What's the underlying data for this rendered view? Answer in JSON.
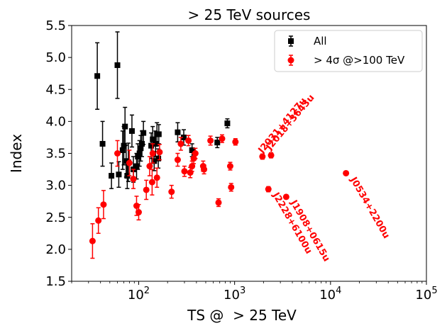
{
  "chart_data": {
    "type": "scatter",
    "title": "> 25 TeV sources",
    "xlabel": "TS @  > 25 TeV",
    "ylabel": "Index",
    "xscale": "log",
    "xlim": [
      20,
      100000
    ],
    "ylim": [
      1.5,
      5.5
    ],
    "yticks": [
      "1.5",
      "2.0",
      "2.5",
      "3.0",
      "3.5",
      "4.0",
      "4.5",
      "5.0",
      "5.5"
    ],
    "ytick_values": [
      1.5,
      2.0,
      2.5,
      3.0,
      3.5,
      4.0,
      4.5,
      5.0,
      5.5
    ],
    "xtick_values": [
      100,
      1000,
      10000,
      100000
    ],
    "xtick_mantissa": "10",
    "xtick_exponents": [
      "2",
      "3",
      "4",
      "5"
    ],
    "legend_position": "top-right",
    "series": [
      {
        "name": "All",
        "color": "#000000",
        "marker": "square",
        "points": [
          {
            "x": 37,
            "y": 4.71,
            "yerr": 0.52
          },
          {
            "x": 42,
            "y": 3.65,
            "yerr": 0.35
          },
          {
            "x": 52,
            "y": 3.15,
            "yerr": 0.2
          },
          {
            "x": 60,
            "y": 4.88,
            "yerr": 0.52
          },
          {
            "x": 62,
            "y": 3.17,
            "yerr": 0.2
          },
          {
            "x": 68,
            "y": 3.55,
            "yerr": 0.3
          },
          {
            "x": 70,
            "y": 3.62,
            "yerr": 0.3
          },
          {
            "x": 72,
            "y": 3.92,
            "yerr": 0.3
          },
          {
            "x": 74,
            "y": 3.38,
            "yerr": 0.25
          },
          {
            "x": 76,
            "y": 3.15,
            "yerr": 0.2
          },
          {
            "x": 78,
            "y": 3.36,
            "yerr": 0.3
          },
          {
            "x": 85,
            "y": 3.85,
            "yerr": 0.25
          },
          {
            "x": 88,
            "y": 3.25,
            "yerr": 0.2
          },
          {
            "x": 95,
            "y": 3.3,
            "yerr": 0.2
          },
          {
            "x": 98,
            "y": 3.45,
            "yerr": 0.2
          },
          {
            "x": 102,
            "y": 3.5,
            "yerr": 0.2
          },
          {
            "x": 105,
            "y": 3.58,
            "yerr": 0.2
          },
          {
            "x": 108,
            "y": 3.65,
            "yerr": 0.2
          },
          {
            "x": 112,
            "y": 3.82,
            "yerr": 0.18
          },
          {
            "x": 135,
            "y": 3.62,
            "yerr": 0.2
          },
          {
            "x": 140,
            "y": 3.72,
            "yerr": 0.2
          },
          {
            "x": 145,
            "y": 3.38,
            "yerr": 0.15
          },
          {
            "x": 150,
            "y": 3.65,
            "yerr": 0.2
          },
          {
            "x": 155,
            "y": 3.8,
            "yerr": 0.18
          },
          {
            "x": 160,
            "y": 3.42,
            "yerr": 0.15
          },
          {
            "x": 162,
            "y": 3.8,
            "yerr": 0.15
          },
          {
            "x": 255,
            "y": 3.83,
            "yerr": 0.15
          },
          {
            "x": 295,
            "y": 3.75,
            "yerr": 0.12
          },
          {
            "x": 360,
            "y": 3.55,
            "yerr": 0.1
          },
          {
            "x": 660,
            "y": 3.67,
            "yerr": 0.08
          },
          {
            "x": 840,
            "y": 3.97,
            "yerr": 0.07
          }
        ]
      },
      {
        "name": "> 4σ @>100 TeV",
        "color": "#ff0000",
        "marker": "circle",
        "points": [
          {
            "x": 33,
            "y": 2.13,
            "yerr": 0.27
          },
          {
            "x": 38,
            "y": 2.45,
            "yerr": 0.2
          },
          {
            "x": 43,
            "y": 2.7,
            "yerr": 0.22
          },
          {
            "x": 60,
            "y": 3.5,
            "yerr": 0.2
          },
          {
            "x": 80,
            "y": 3.35,
            "yerr": 0.2
          },
          {
            "x": 88,
            "y": 3.1,
            "yerr": 0.15
          },
          {
            "x": 95,
            "y": 2.68,
            "yerr": 0.15
          },
          {
            "x": 100,
            "y": 2.58,
            "yerr": 0.12
          },
          {
            "x": 120,
            "y": 2.93,
            "yerr": 0.15
          },
          {
            "x": 130,
            "y": 3.3,
            "yerr": 0.15
          },
          {
            "x": 138,
            "y": 3.05,
            "yerr": 0.2
          },
          {
            "x": 140,
            "y": 3.5,
            "yerr": 0.15
          },
          {
            "x": 155,
            "y": 3.12,
            "yerr": 0.15
          },
          {
            "x": 165,
            "y": 3.52,
            "yerr": 0.12
          },
          {
            "x": 220,
            "y": 2.9,
            "yerr": 0.1
          },
          {
            "x": 255,
            "y": 3.4,
            "yerr": 0.1
          },
          {
            "x": 275,
            "y": 3.65,
            "yerr": 0.1
          },
          {
            "x": 300,
            "y": 3.22,
            "yerr": 0.08
          },
          {
            "x": 330,
            "y": 3.7,
            "yerr": 0.08
          },
          {
            "x": 345,
            "y": 3.2,
            "yerr": 0.08
          },
          {
            "x": 360,
            "y": 3.3,
            "yerr": 0.08
          },
          {
            "x": 375,
            "y": 3.42,
            "yerr": 0.08
          },
          {
            "x": 390,
            "y": 3.5,
            "yerr": 0.08
          },
          {
            "x": 470,
            "y": 3.3,
            "yerr": 0.08
          },
          {
            "x": 480,
            "y": 3.25,
            "yerr": 0.07
          },
          {
            "x": 560,
            "y": 3.7,
            "yerr": 0.07
          },
          {
            "x": 680,
            "y": 2.73,
            "yerr": 0.06
          },
          {
            "x": 740,
            "y": 3.73,
            "yerr": 0.06
          },
          {
            "x": 900,
            "y": 3.3,
            "yerr": 0.06
          },
          {
            "x": 920,
            "y": 2.97,
            "yerr": 0.06
          },
          {
            "x": 1020,
            "y": 3.68,
            "yerr": 0.05
          },
          {
            "x": 1950,
            "y": 3.45,
            "yerr": 0.04
          },
          {
            "x": 2250,
            "y": 2.94,
            "yerr": 0.04
          },
          {
            "x": 2400,
            "y": 3.47,
            "yerr": 0.04
          },
          {
            "x": 3450,
            "y": 2.82,
            "yerr": 0.03
          },
          {
            "x": 14500,
            "y": 3.19,
            "yerr": 0.02
          }
        ]
      }
    ],
    "annotations": [
      {
        "text": "J2031+4127u",
        "x": 1950,
        "y": 3.45,
        "rotation": -50
      },
      {
        "text": "J2018+3643u",
        "x": 2350,
        "y": 3.5,
        "rotation": -50
      },
      {
        "text": "J2228+6100u",
        "x": 2250,
        "y": 2.92,
        "rotation": 60
      },
      {
        "text": "J1908+0615u",
        "x": 3450,
        "y": 2.8,
        "rotation": 60
      },
      {
        "text": "J0534+2200u",
        "x": 14500,
        "y": 3.16,
        "rotation": 60
      }
    ]
  }
}
